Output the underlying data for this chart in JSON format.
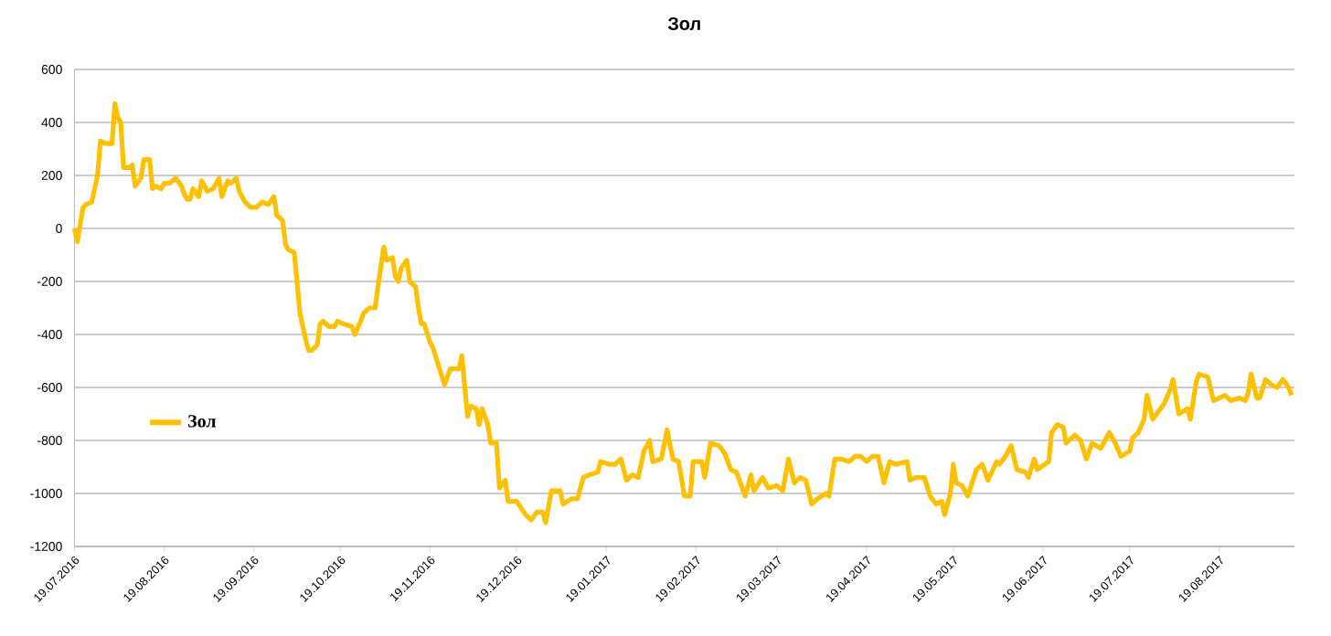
{
  "chart_data": {
    "type": "line",
    "title": "Зол",
    "grid": "y",
    "legend": "left",
    "marker": "none",
    "line_style": "solid",
    "xlim": [
      "2016-07-19",
      "2017-09-14"
    ],
    "ylim": [
      -1200,
      600
    ],
    "yticks": [
      -1200,
      -1000,
      -800,
      -600,
      -400,
      -200,
      0,
      200,
      400,
      600
    ],
    "xticks": [
      {
        "value": "2016-07-19",
        "label": "19.07.2016"
      },
      {
        "value": "2016-08-19",
        "label": "19.08.2016"
      },
      {
        "value": "2016-09-19",
        "label": "19.09.2016"
      },
      {
        "value": "2016-10-19",
        "label": "19.10.2016"
      },
      {
        "value": "2016-11-19",
        "label": "19.11.2016"
      },
      {
        "value": "2016-12-19",
        "label": "19.12.2016"
      },
      {
        "value": "2017-01-19",
        "label": "19.01.2017"
      },
      {
        "value": "2017-02-19",
        "label": "19.02.2017"
      },
      {
        "value": "2017-03-19",
        "label": "19.03.2017"
      },
      {
        "value": "2017-04-19",
        "label": "19.04.2017"
      },
      {
        "value": "2017-05-19",
        "label": "19.05.2017"
      },
      {
        "value": "2017-06-19",
        "label": "19.06.2017"
      },
      {
        "value": "2017-07-19",
        "label": "19.07.2017"
      },
      {
        "value": "2017-08-19",
        "label": "19.08.2017"
      }
    ],
    "x": [
      "2016-07-19",
      "2016-07-20",
      "2016-07-22",
      "2016-07-23",
      "2016-07-25",
      "2016-07-27",
      "2016-07-28",
      "2016-07-30",
      "2016-08-01",
      "2016-08-02",
      "2016-08-03",
      "2016-08-04",
      "2016-08-05",
      "2016-08-07",
      "2016-08-08",
      "2016-08-09",
      "2016-08-11",
      "2016-08-12",
      "2016-08-14",
      "2016-08-15",
      "2016-08-16",
      "2016-08-18",
      "2016-08-19",
      "2016-08-21",
      "2016-08-23",
      "2016-08-25",
      "2016-08-26",
      "2016-08-27",
      "2016-08-28",
      "2016-08-29",
      "2016-08-31",
      "2016-09-01",
      "2016-09-03",
      "2016-09-05",
      "2016-09-07",
      "2016-09-08",
      "2016-09-10",
      "2016-09-11",
      "2016-09-13",
      "2016-09-14",
      "2016-09-16",
      "2016-09-18",
      "2016-09-20",
      "2016-09-22",
      "2016-09-24",
      "2016-09-26",
      "2016-09-27",
      "2016-09-29",
      "2016-09-30",
      "2016-10-01",
      "2016-10-03",
      "2016-10-04",
      "2016-10-05",
      "2016-10-07",
      "2016-10-08",
      "2016-10-09",
      "2016-10-11",
      "2016-10-12",
      "2016-10-13",
      "2016-10-15",
      "2016-10-17",
      "2016-10-18",
      "2016-10-20",
      "2016-10-23",
      "2016-10-24",
      "2016-10-26",
      "2016-10-27",
      "2016-10-29",
      "2016-10-31",
      "2016-11-01",
      "2016-11-03",
      "2016-11-04",
      "2016-11-06",
      "2016-11-07",
      "2016-11-08",
      "2016-11-09",
      "2016-11-11",
      "2016-11-12",
      "2016-11-14",
      "2016-11-15",
      "2016-11-16",
      "2016-11-17",
      "2016-11-19",
      "2016-11-20",
      "2016-11-22",
      "2016-11-24",
      "2016-11-26",
      "2016-11-29",
      "2016-11-30",
      "2016-12-02",
      "2016-12-03",
      "2016-12-05",
      "2016-12-06",
      "2016-12-07",
      "2016-12-09",
      "2016-12-10",
      "2016-12-12",
      "2016-12-13",
      "2016-12-15",
      "2016-12-16",
      "2016-12-19",
      "2016-12-22",
      "2016-12-24",
      "2016-12-26",
      "2016-12-28",
      "2016-12-29",
      "2016-12-31",
      "2017-01-03",
      "2017-01-04",
      "2017-01-07",
      "2017-01-09",
      "2017-01-11",
      "2017-01-13",
      "2017-01-16",
      "2017-01-17",
      "2017-01-20",
      "2017-01-22",
      "2017-01-24",
      "2017-01-26",
      "2017-01-28",
      "2017-01-30",
      "2017-02-01",
      "2017-02-03",
      "2017-02-04",
      "2017-02-07",
      "2017-02-09",
      "2017-02-11",
      "2017-02-13",
      "2017-02-15",
      "2017-02-17",
      "2017-02-18",
      "2017-02-21",
      "2017-02-22",
      "2017-02-24",
      "2017-02-27",
      "2017-03-01",
      "2017-03-03",
      "2017-03-05",
      "2017-03-08",
      "2017-03-10",
      "2017-03-11",
      "2017-03-14",
      "2017-03-16",
      "2017-03-19",
      "2017-03-21",
      "2017-03-23",
      "2017-03-25",
      "2017-03-27",
      "2017-03-29",
      "2017-03-31",
      "2017-04-02",
      "2017-04-05",
      "2017-04-06",
      "2017-04-08",
      "2017-04-10",
      "2017-04-13",
      "2017-04-15",
      "2017-04-17",
      "2017-04-19",
      "2017-04-21",
      "2017-04-23",
      "2017-04-25",
      "2017-04-27",
      "2017-04-29",
      "2017-05-03",
      "2017-05-04",
      "2017-05-06",
      "2017-05-09",
      "2017-05-11",
      "2017-05-13",
      "2017-05-15",
      "2017-05-16",
      "2017-05-18",
      "2017-05-19",
      "2017-05-20",
      "2017-05-22",
      "2017-05-24",
      "2017-05-27",
      "2017-05-29",
      "2017-05-31",
      "2017-06-03",
      "2017-06-04",
      "2017-06-06",
      "2017-06-08",
      "2017-06-10",
      "2017-06-13",
      "2017-06-14",
      "2017-06-16",
      "2017-06-17",
      "2017-06-21",
      "2017-06-22",
      "2017-06-24",
      "2017-06-26",
      "2017-06-27",
      "2017-06-30",
      "2017-07-02",
      "2017-07-04",
      "2017-07-06",
      "2017-07-09",
      "2017-07-12",
      "2017-07-14",
      "2017-07-16",
      "2017-07-19",
      "2017-07-20",
      "2017-07-22",
      "2017-07-24",
      "2017-07-25",
      "2017-07-27",
      "2017-07-29",
      "2017-07-31",
      "2017-08-02",
      "2017-08-03",
      "2017-08-05",
      "2017-08-08",
      "2017-08-09",
      "2017-08-11",
      "2017-08-12",
      "2017-08-15",
      "2017-08-17",
      "2017-08-19",
      "2017-08-21",
      "2017-08-23",
      "2017-08-26",
      "2017-08-28",
      "2017-08-29",
      "2017-08-30",
      "2017-09-01",
      "2017-09-02",
      "2017-09-04",
      "2017-09-06",
      "2017-09-08",
      "2017-09-10",
      "2017-09-12",
      "2017-09-13"
    ],
    "series": [
      {
        "name": "Зол",
        "color": "#ffc000",
        "values": [
          0,
          -50,
          80,
          90,
          100,
          200,
          330,
          320,
          320,
          470,
          420,
          400,
          230,
          230,
          240,
          160,
          190,
          260,
          260,
          150,
          160,
          150,
          170,
          170,
          190,
          160,
          130,
          110,
          110,
          150,
          120,
          180,
          140,
          150,
          190,
          120,
          180,
          170,
          190,
          140,
          100,
          80,
          80,
          100,
          90,
          120,
          50,
          30,
          -60,
          -80,
          -90,
          -200,
          -320,
          -420,
          -460,
          -460,
          -440,
          -360,
          -350,
          -370,
          -370,
          -350,
          -360,
          -370,
          -400,
          -350,
          -320,
          -300,
          -300,
          -220,
          -70,
          -120,
          -110,
          -180,
          -200,
          -150,
          -120,
          -200,
          -220,
          -300,
          -360,
          -360,
          -430,
          -450,
          -520,
          -590,
          -530,
          -530,
          -480,
          -710,
          -670,
          -680,
          -740,
          -680,
          -740,
          -810,
          -810,
          -980,
          -950,
          -1030,
          -1030,
          -1080,
          -1100,
          -1070,
          -1070,
          -1110,
          -990,
          -990,
          -1040,
          -1020,
          -1020,
          -940,
          -930,
          -920,
          -880,
          -890,
          -890,
          -870,
          -950,
          -930,
          -940,
          -840,
          -800,
          -880,
          -870,
          -760,
          -870,
          -880,
          -1010,
          -1010,
          -880,
          -880,
          -940,
          -810,
          -820,
          -850,
          -910,
          -920,
          -1010,
          -930,
          -990,
          -940,
          -980,
          -970,
          -990,
          -870,
          -960,
          -940,
          -950,
          -1040,
          -1020,
          -1000,
          -1010,
          -870,
          -870,
          -880,
          -860,
          -860,
          -880,
          -860,
          -860,
          -960,
          -880,
          -890,
          -880,
          -950,
          -940,
          -940,
          -1010,
          -1040,
          -1030,
          -1080,
          -1000,
          -890,
          -960,
          -970,
          -1010,
          -910,
          -890,
          -950,
          -880,
          -890,
          -860,
          -820,
          -910,
          -920,
          -940,
          -870,
          -910,
          -880,
          -770,
          -740,
          -750,
          -810,
          -780,
          -800,
          -870,
          -810,
          -830,
          -770,
          -810,
          -860,
          -840,
          -790,
          -770,
          -720,
          -630,
          -720,
          -690,
          -660,
          -610,
          -570,
          -700,
          -680,
          -720,
          -580,
          -550,
          -560,
          -650,
          -640,
          -630,
          -650,
          -640,
          -650,
          -620,
          -550,
          -640,
          -640,
          -570,
          -590,
          -600,
          -570,
          -600,
          -630
        ]
      }
    ]
  }
}
